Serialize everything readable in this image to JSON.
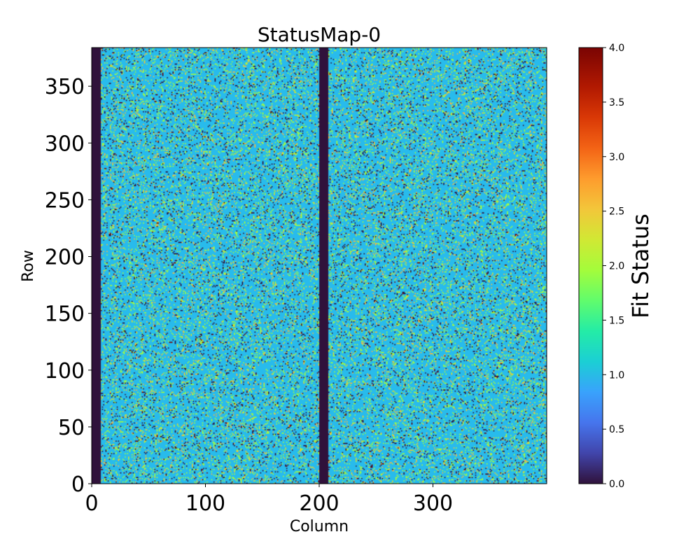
{
  "chart_data": {
    "type": "heatmap",
    "title": "StatusMap-0",
    "xlabel": "Column",
    "ylabel": "Row",
    "xlim": [
      0,
      400
    ],
    "ylim": [
      0,
      384
    ],
    "x_ticks": [
      0,
      100,
      200,
      300
    ],
    "x_tick_labels": [
      "0",
      "100",
      "200",
      "300"
    ],
    "y_ticks": [
      0,
      50,
      100,
      150,
      200,
      250,
      300,
      350
    ],
    "y_tick_labels": [
      "0",
      "50",
      "100",
      "150",
      "200",
      "250",
      "300",
      "350"
    ],
    "grid": false,
    "colormap": "turbo",
    "colorbar": {
      "label": "Fit Status",
      "vmin": 0.0,
      "vmax": 4.0,
      "ticks": [
        0.0,
        0.5,
        1.0,
        1.5,
        2.0,
        2.5,
        3.0,
        3.5,
        4.0
      ],
      "tick_labels": [
        "0.0",
        "0.5",
        "1.0",
        "1.5",
        "2.0",
        "2.5",
        "3.0",
        "3.5",
        "4.0"
      ]
    },
    "masked_columns": [
      {
        "from": 0,
        "to": 8,
        "value": 0
      },
      {
        "from": 200,
        "to": 208,
        "value": 0
      }
    ],
    "dominant_value": 1,
    "value_fractions": {
      "0": 0.05,
      "1": 0.8,
      "2": 0.1,
      "3": 0.04,
      "4": 0.01
    }
  }
}
